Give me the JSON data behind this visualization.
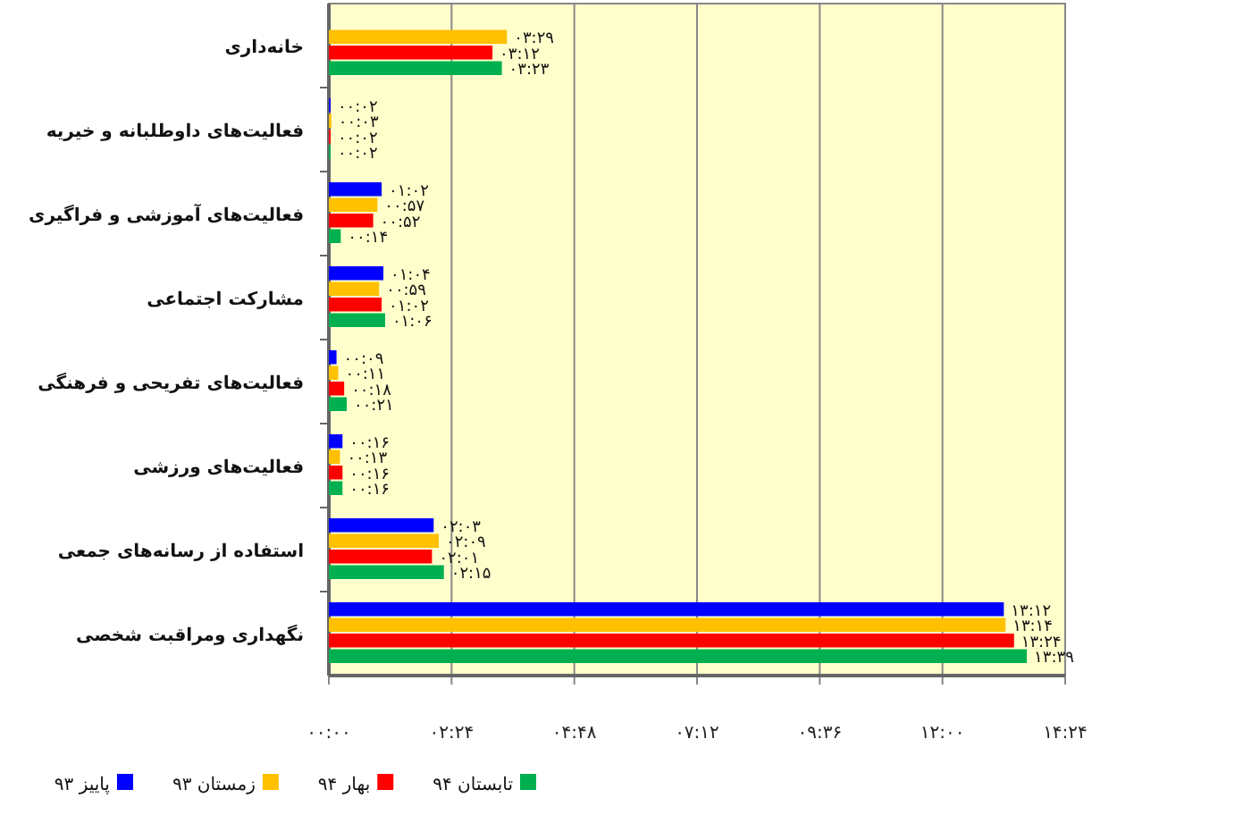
{
  "chart_data": {
    "type": "bar",
    "orientation": "horizontal",
    "categories": [
      "خانه‌داری",
      "فعالیت‌های داوطلبانه و خیریه",
      "فعالیت‌های آموزشی و فراگیری",
      "مشارکت اجتماعی",
      "فعالیت‌های تفریحی و فرهنگی",
      "فعالیت‌های ورزشی",
      "استفاده از رسانه‌های جمعی",
      "نگهداری ومراقبت شخصی"
    ],
    "series": [
      {
        "name": "پاییز ۹۳",
        "color": "#0000ff",
        "values": [
          null,
          0.033,
          1.033,
          1.067,
          0.15,
          0.267,
          2.05,
          13.2
        ],
        "value_labels": [
          null,
          "۰۰:۰۲",
          "۰۱:۰۲",
          "۰۱:۰۴",
          "۰۰:۰۹",
          "۰۰:۱۶",
          "۰۲:۰۳",
          "۱۳:۱۲"
        ]
      },
      {
        "name": "زمستان ۹۳",
        "color": "#ffc000",
        "values": [
          3.483,
          0.05,
          0.95,
          0.983,
          0.183,
          0.217,
          2.15,
          13.233
        ],
        "value_labels": [
          "۰۳:۲۹",
          "۰۰:۰۳",
          "۰۰:۵۷",
          "۰۰:۵۹",
          "۰۰:۱۱",
          "۰۰:۱۳",
          "۰۲:۰۹",
          "۱۳:۱۴"
        ]
      },
      {
        "name": "بهار ۹۴",
        "color": "#ff0000",
        "values": [
          3.2,
          0.033,
          0.867,
          1.033,
          0.3,
          0.267,
          2.017,
          13.4
        ],
        "value_labels": [
          "۰۳:۱۲",
          "۰۰:۰۲",
          "۰۰:۵۲",
          "۰۱:۰۲",
          "۰۰:۱۸",
          "۰۰:۱۶",
          "۰۲:۰۱",
          "۱۳:۲۴"
        ]
      },
      {
        "name": "تابستان ۹۴",
        "color": "#00b050",
        "values": [
          3.383,
          0.033,
          0.233,
          1.1,
          0.35,
          0.267,
          2.25,
          13.65
        ],
        "value_labels": [
          "۰۳:۲۳",
          "۰۰:۰۲",
          "۰۰:۱۴",
          "۰۱:۰۶",
          "۰۰:۲۱",
          "۰۰:۱۶",
          "۰۲:۱۵",
          "۱۳:۳۹"
        ]
      }
    ],
    "xlim": [
      0,
      14.4
    ],
    "xticks": [
      {
        "value": 0,
        "label": "۰۰:۰۰"
      },
      {
        "value": 2.4,
        "label": "۰۲:۲۴"
      },
      {
        "value": 4.8,
        "label": "۰۴:۴۸"
      },
      {
        "value": 7.2,
        "label": "۰۷:۱۲"
      },
      {
        "value": 9.6,
        "label": "۰۹:۳۶"
      },
      {
        "value": 12,
        "label": "۱۲:۰۰"
      },
      {
        "value": 14.4,
        "label": "۱۴:۲۴"
      }
    ],
    "grid": "x",
    "legend": "bottom"
  }
}
